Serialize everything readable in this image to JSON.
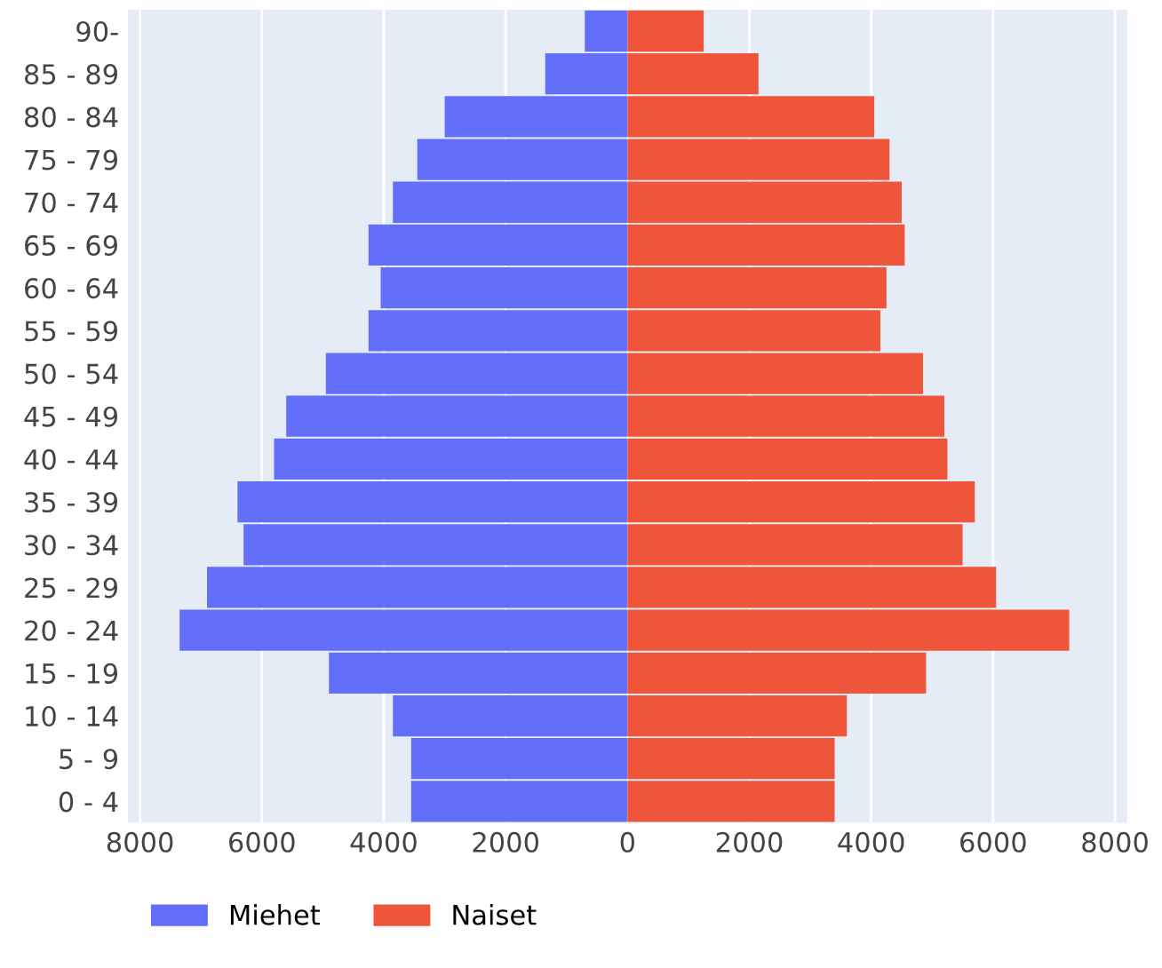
{
  "chart_data": {
    "type": "bar",
    "orientation": "horizontal",
    "categories": [
      "90-",
      "85 - 89",
      "80 - 84",
      "75 - 79",
      "70 - 74",
      "65 - 69",
      "60 - 64",
      "55 - 59",
      "50 - 54",
      "45 - 49",
      "40 - 44",
      "35 - 39",
      "30 - 34",
      "25 - 29",
      "20 - 24",
      "15 - 19",
      "10 - 14",
      "5 - 9",
      "0 - 4"
    ],
    "series": [
      {
        "name": "Miehet",
        "color": "#636efa",
        "values": [
          -700,
          -1350,
          -3000,
          -3450,
          -3850,
          -4250,
          -4050,
          -4250,
          -4950,
          -5600,
          -5800,
          -6400,
          -6300,
          -6900,
          -7350,
          -4900,
          -3850,
          -3550,
          -3550
        ]
      },
      {
        "name": "Naiset",
        "color": "#ef553b",
        "values": [
          1250,
          2150,
          4050,
          4300,
          4500,
          4550,
          4250,
          4150,
          4850,
          5200,
          5250,
          5700,
          5500,
          6050,
          7250,
          4900,
          3600,
          3400,
          3400
        ]
      }
    ],
    "xlim": [
      -8200,
      8200
    ],
    "xticks": [
      {
        "value": -8000,
        "label": "8000"
      },
      {
        "value": -6000,
        "label": "6000"
      },
      {
        "value": -4000,
        "label": "4000"
      },
      {
        "value": -2000,
        "label": "2000"
      },
      0,
      2000,
      4000,
      6000,
      8000
    ],
    "grid": "x",
    "legend": "bottom",
    "stacked": true
  }
}
